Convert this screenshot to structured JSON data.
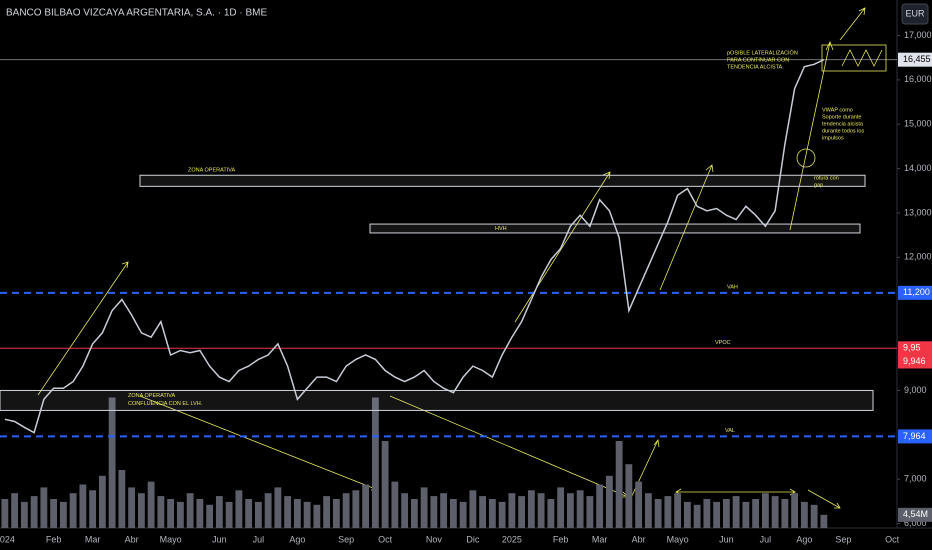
{
  "chart_data": {
    "type": "line",
    "title": "BANCO BILBAO VIZCAYA ARGENTARIA, S.A. · 1D · BME",
    "currency": "EUR",
    "color": "#c8ccd6",
    "categories": [
      "2024",
      null,
      null,
      null,
      null,
      "Feb",
      null,
      null,
      null,
      "Mar",
      null,
      null,
      null,
      "Abr",
      null,
      null,
      null,
      "Mayo",
      null,
      null,
      null,
      null,
      "Jun",
      null,
      null,
      null,
      "Jul",
      null,
      null,
      null,
      "Ago",
      null,
      null,
      null,
      null,
      "Sep",
      null,
      null,
      null,
      "Oct",
      null,
      null,
      null,
      null,
      "Nov",
      null,
      null,
      null,
      "Dic",
      null,
      null,
      null,
      "2025",
      null,
      null,
      null,
      null,
      "Feb",
      null,
      null,
      null,
      "Mar",
      null,
      null,
      null,
      "Abr",
      null,
      null,
      null,
      "Mayo",
      null,
      null,
      null,
      null,
      "Jun",
      null,
      null,
      null,
      "Jul",
      null,
      null,
      null,
      "Ago",
      null,
      null,
      null,
      "Sep",
      null,
      null,
      null,
      null,
      "Oct"
    ],
    "values": [
      8.35,
      8.3,
      8.17,
      8.05,
      8.8,
      9.05,
      9.05,
      9.2,
      9.55,
      10.05,
      10.3,
      10.8,
      11.05,
      10.7,
      10.3,
      10.2,
      10.55,
      9.8,
      9.9,
      9.85,
      9.9,
      9.55,
      9.3,
      9.2,
      9.45,
      9.55,
      9.7,
      9.8,
      10.05,
      9.55,
      8.8,
      9.05,
      9.3,
      9.3,
      9.2,
      9.55,
      9.7,
      9.8,
      9.7,
      9.45,
      9.3,
      9.2,
      9.3,
      9.45,
      9.2,
      9.05,
      8.95,
      9.3,
      9.55,
      9.45,
      9.3,
      9.8,
      10.2,
      10.55,
      11.05,
      11.55,
      11.95,
      12.2,
      12.7,
      12.95,
      12.7,
      13.3,
      13.05,
      12.45,
      10.8,
      11.3,
      11.8,
      12.3,
      12.8,
      13.4,
      13.55,
      13.15,
      13.05,
      13.1,
      12.95,
      12.85,
      13.15,
      12.95,
      12.7,
      13.05,
      14.55,
      15.8,
      16.3,
      16.35,
      16.455,
      null,
      null,
      null,
      null,
      null,
      null,
      null
    ],
    "ylim": [
      5.9,
      17.8
    ],
    "yticks": [
      {
        "value": 17,
        "label": "17,000"
      },
      {
        "value": 16,
        "label": "16,000"
      },
      {
        "value": 15,
        "label": "15,000"
      },
      {
        "value": 14,
        "label": "14,000"
      },
      {
        "value": 13,
        "label": "13,000"
      },
      {
        "value": 12,
        "label": "12,000"
      },
      {
        "value": 9,
        "label": "9,000"
      },
      {
        "value": 7,
        "label": "7,000"
      },
      {
        "value": 6,
        "label": "6,000"
      }
    ],
    "volume": {
      "color": "#5d606b",
      "axis": "y2",
      "values": [
        10,
        12,
        9,
        11,
        14,
        10,
        9,
        12,
        15,
        13,
        18,
        45,
        20,
        14,
        12,
        16,
        11,
        10,
        9,
        12,
        10,
        8,
        11,
        9,
        13,
        10,
        9,
        12,
        14,
        11,
        10,
        9,
        8,
        11,
        10,
        12,
        13,
        15,
        45,
        30,
        16,
        12,
        10,
        14,
        11,
        12,
        10,
        9,
        13,
        11,
        10,
        9,
        12,
        11,
        13,
        12,
        10,
        14,
        12,
        13,
        11,
        15,
        18,
        30,
        22,
        16,
        12,
        10,
        11,
        12,
        9,
        8,
        10,
        9,
        10,
        11,
        9,
        10,
        12,
        11,
        10,
        12,
        9,
        8,
        4.54
      ]
    },
    "y2lim": [
      0,
      50
    ],
    "y2ticks": [
      {
        "value": 4.54,
        "label": "4,54M"
      }
    ],
    "levels": [
      {
        "value": 16.455,
        "label": "16,455",
        "color": "#e0e3eb",
        "style": "solid"
      },
      {
        "value": 11.2,
        "label": "11,200",
        "color": "#2962ff",
        "style": "dashed",
        "name": "VAH"
      },
      {
        "value": 9.95,
        "label": "9,95",
        "color": "#f23645",
        "style": "solid",
        "name": "VPOC"
      },
      {
        "value": 9.946,
        "label": "9,946",
        "color": "#f23645",
        "style": "none"
      },
      {
        "value": 7.964,
        "label": "7,964",
        "color": "#2962ff",
        "style": "dashed",
        "name": "VAL"
      }
    ],
    "zones": [
      {
        "label": [
          "ZONA OPERATIVA"
        ],
        "range": [
          13.6,
          13.85
        ]
      },
      {
        "label": [
          "HVH"
        ],
        "range": [
          12.55,
          12.75
        ]
      },
      {
        "label": [
          "ZONA OPERATIVA",
          "CONFLUENCIA CON EL LVH."
        ],
        "range": [
          8.55,
          9.0
        ]
      }
    ],
    "notes": [
      {
        "text": [
          "pOSIBLE LATERALIZACIÓN",
          "PARA CONTINUAR CON",
          "TENDENCIA ALCISTA."
        ]
      },
      {
        "text": [
          "VWAP como",
          "Soporte durante",
          "tendencia alcista",
          "durante todos los",
          "impulsos"
        ]
      },
      {
        "text": [
          "rotura con",
          "gap"
        ]
      }
    ]
  }
}
